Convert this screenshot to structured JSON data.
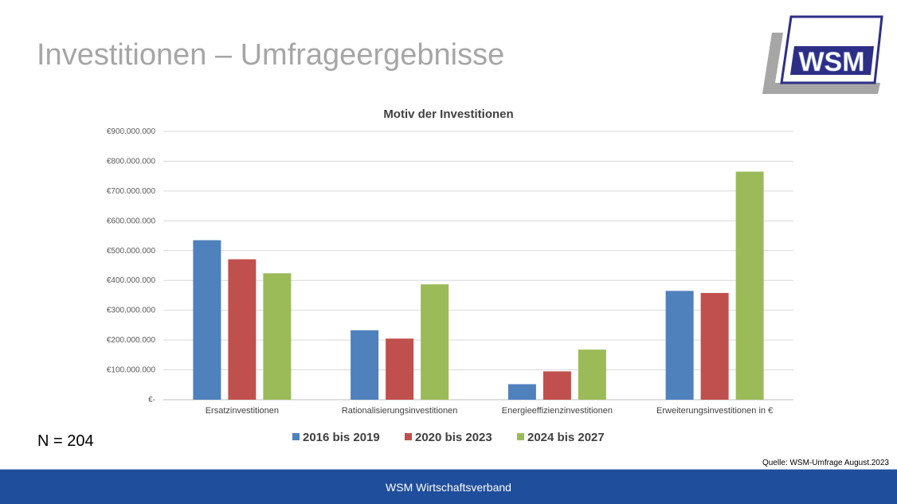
{
  "slide": {
    "title": "Investitionen – Umfrageergebnisse",
    "sample_size": "N = 204",
    "source": "Quelle: WSM-Umfrage August.2023",
    "footer": "WSM Wirtschaftsverband",
    "logo_text": "WSM"
  },
  "colors": {
    "title_gray": "#a6a6a6",
    "footer_blue": "#1f4e9c",
    "series_blue": "#4f81bd",
    "series_red": "#c0504d",
    "series_green": "#9bbb59"
  },
  "chart_data": {
    "type": "bar",
    "title": "Motiv der Investitionen",
    "categories": [
      "Ersatzinvestitionen",
      "Rationalisierungsinvestitionen",
      "Energieeffizienzinvestitionen",
      "Erweiterungsinvestitionen in €"
    ],
    "series": [
      {
        "name": "2016 bis 2019",
        "color": "#4f81bd",
        "values": [
          535000000,
          233000000,
          52000000,
          365000000
        ]
      },
      {
        "name": "2020 bis 2023",
        "color": "#c0504d",
        "values": [
          471000000,
          205000000,
          95000000,
          358000000
        ]
      },
      {
        "name": "2024 bis 2027",
        "color": "#9bbb59",
        "values": [
          424000000,
          387000000,
          168000000,
          765000000
        ]
      }
    ],
    "ylim": [
      0,
      900000000
    ],
    "yticks": [
      {
        "value": 0,
        "label": "€-"
      },
      {
        "value": 100000000,
        "label": "€100.000.000"
      },
      {
        "value": 200000000,
        "label": "€200.000.000"
      },
      {
        "value": 300000000,
        "label": "€300.000.000"
      },
      {
        "value": 400000000,
        "label": "€400.000.000"
      },
      {
        "value": 500000000,
        "label": "€500.000.000"
      },
      {
        "value": 600000000,
        "label": "€600.000.000"
      },
      {
        "value": 700000000,
        "label": "€700.000.000"
      },
      {
        "value": 800000000,
        "label": "€800.000.000"
      },
      {
        "value": 900000000,
        "label": "€900.000.000"
      }
    ],
    "grid": true,
    "legend": "bottom-center",
    "xlabel": "",
    "ylabel": ""
  }
}
